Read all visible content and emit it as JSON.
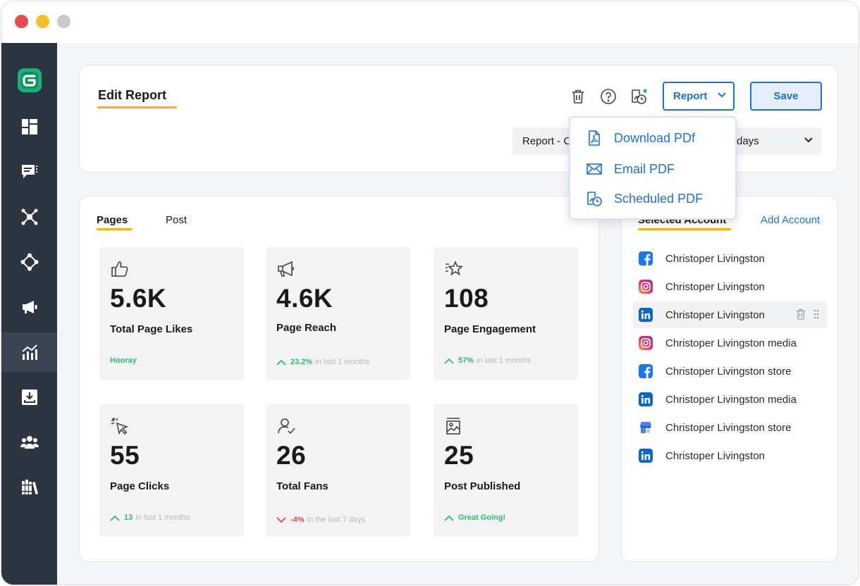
{
  "colors": {
    "accent": "#1f6fd6",
    "underline": "#f5b400",
    "sidebar": "#2c3440",
    "up": "#2dbb6e",
    "down": "#e54b4b"
  },
  "sidebar": {
    "logo": "brand-g-logo",
    "items": [
      {
        "icon": "dashboard-icon"
      },
      {
        "icon": "inbox-icon"
      },
      {
        "icon": "network-icon"
      },
      {
        "icon": "workflow-icon"
      },
      {
        "icon": "megaphone-icon"
      },
      {
        "icon": "analytics-icon",
        "active": true
      },
      {
        "icon": "download-tray-icon"
      },
      {
        "icon": "team-icon"
      },
      {
        "icon": "library-icon"
      }
    ]
  },
  "header": {
    "title": "Edit Report",
    "report_button": "Report",
    "save_button": "Save",
    "select_left": "Report - C",
    "select_right": "days"
  },
  "dropdown": {
    "items": [
      {
        "label": "Download PDf",
        "icon": "pdf-file-icon"
      },
      {
        "label": "Email PDF",
        "icon": "envelope-icon"
      },
      {
        "label": "Scheduled PDF",
        "icon": "scheduled-report-icon"
      }
    ]
  },
  "tabs": [
    {
      "label": "Pages",
      "active": true
    },
    {
      "label": "Post"
    }
  ],
  "tiles": [
    {
      "icon": "thumbs-up-icon",
      "value": "5.6K",
      "label": "Total Page Likes",
      "stat": "Hooray",
      "stat_muted": "",
      "trend": "none"
    },
    {
      "icon": "megaphone-icon",
      "value": "4.6K",
      "label": "Page Reach",
      "stat": "23.2%",
      "stat_muted": "in last 1 months",
      "trend": "up"
    },
    {
      "icon": "star-icon",
      "value": "108",
      "label": "Page Engagement",
      "stat": "57%",
      "stat_muted": "in last 1 months",
      "trend": "up"
    },
    {
      "icon": "cursor-click-icon",
      "value": "55",
      "label": "Page Clicks",
      "stat": "13",
      "stat_muted": "in last 1 months",
      "trend": "up"
    },
    {
      "icon": "user-check-icon",
      "value": "26",
      "label": "Total Fans",
      "stat": "-4%",
      "stat_muted": "in the last 7 days",
      "trend": "down"
    },
    {
      "icon": "image-post-icon",
      "value": "25",
      "label": "Post Published",
      "stat": "Great Going!",
      "stat_muted": "",
      "trend": "up"
    }
  ],
  "accounts": {
    "title": "Selected Account",
    "add_label": "Add Account",
    "items": [
      {
        "platform": "facebook",
        "name": "Christoper Livingston"
      },
      {
        "platform": "instagram",
        "name": "Christoper Livingston"
      },
      {
        "platform": "linkedin",
        "name": "Christoper Livingston",
        "hover": true
      },
      {
        "platform": "instagram",
        "name": "Christoper Livingston media"
      },
      {
        "platform": "facebook",
        "name": "Christoper Livingston store"
      },
      {
        "platform": "linkedin",
        "name": "Christoper Livingston media"
      },
      {
        "platform": "google-business",
        "name": "Christoper Livingston store"
      },
      {
        "platform": "linkedin",
        "name": "Christoper Livingston"
      }
    ]
  }
}
